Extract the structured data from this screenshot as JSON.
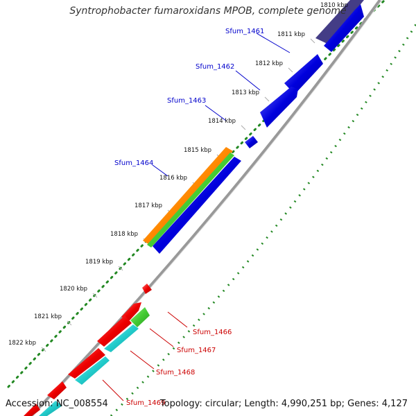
{
  "title": "Syntrophobacter fumaroxidans MPOB, complete genome",
  "accession": "Accession: NC_008554",
  "summary": "Topology: circular; Length: 4,990,251 bp; Genes: 4,127",
  "colors": {
    "cds_forward": "#0000dd",
    "cds_forward_faded": "#3a3380",
    "cds_reverse": "#ee0000",
    "feature_cyan": "#22cccc",
    "feature_green": "#44cc33",
    "feature_orange": "#ff8800",
    "label_blue": "#0000cc",
    "label_red": "#cc0000",
    "dots": "#228822",
    "backbone": "#888888"
  },
  "kbp_ticks": [
    "1810 kbp",
    "1811 kbp",
    "1812 kbp",
    "1813 kbp",
    "1814 kbp",
    "1815 kbp",
    "1816 kbp",
    "1817 kbp",
    "1818 kbp",
    "1819 kbp",
    "1820 kbp",
    "1821 kbp",
    "1822 kbp"
  ],
  "gene_labels_forward": [
    "Sfum_1461",
    "Sfum_1462",
    "Sfum_1463",
    "Sfum_1464"
  ],
  "gene_labels_reverse": [
    "Sfum_1466",
    "Sfum_1467",
    "Sfum_1468",
    "Sfum_1469"
  ]
}
